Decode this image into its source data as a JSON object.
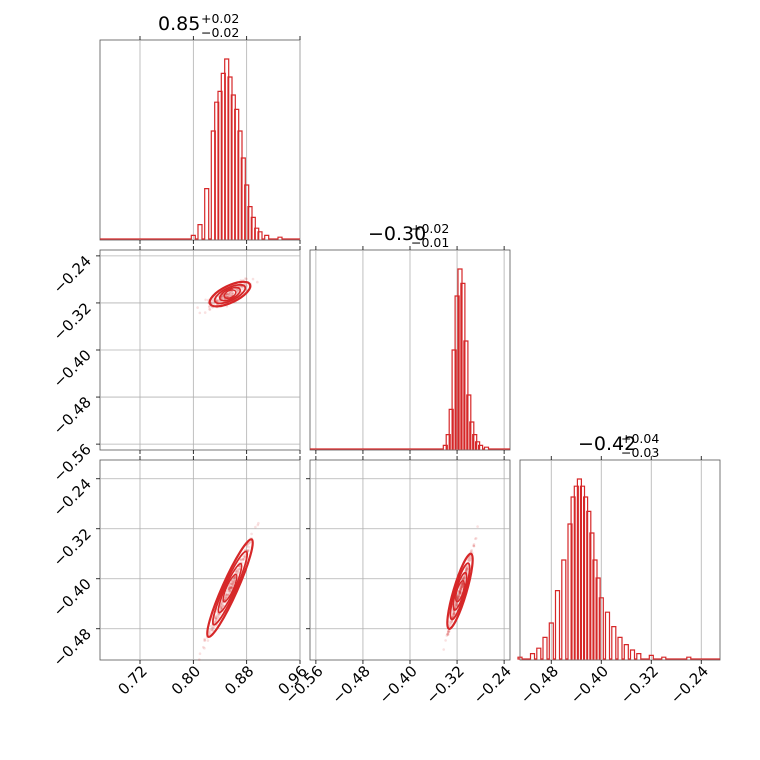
{
  "chart_data": {
    "type": "corner",
    "color": "#d62728",
    "parameters": [
      {
        "range": [
          0.66,
          0.96
        ],
        "ticks": [
          0.72,
          0.8,
          0.88,
          0.96
        ],
        "tick_labels": [
          "0.72",
          "0.80",
          "0.88",
          "0.96"
        ],
        "title": {
          "main": "0.85",
          "plus": "+0.02",
          "minus": "−0.02"
        }
      },
      {
        "range": [
          -0.57,
          -0.23
        ],
        "ticks": [
          -0.56,
          -0.48,
          -0.4,
          -0.32,
          -0.24
        ],
        "tick_labels": [
          "−0.56",
          "−0.48",
          "−0.40",
          "−0.32",
          "−0.24"
        ],
        "title": {
          "main": "−0.30",
          "plus": "+0.02",
          "minus": "−0.01"
        }
      },
      {
        "range": [
          -0.53,
          -0.21
        ],
        "ticks": [
          -0.48,
          -0.4,
          -0.32,
          -0.24
        ],
        "tick_labels": [
          "−0.48",
          "−0.40",
          "−0.32",
          "−0.24"
        ],
        "title": {
          "main": "−0.42",
          "plus": "+0.04",
          "minus": "−0.03"
        }
      }
    ],
    "histograms": [
      {
        "param": 0,
        "bins": [
          [
            0.8,
            2
          ],
          [
            0.81,
            8
          ],
          [
            0.82,
            28
          ],
          [
            0.83,
            60
          ],
          [
            0.835,
            76
          ],
          [
            0.84,
            82
          ],
          [
            0.845,
            92
          ],
          [
            0.85,
            100
          ],
          [
            0.855,
            90
          ],
          [
            0.86,
            80
          ],
          [
            0.865,
            72
          ],
          [
            0.87,
            60
          ],
          [
            0.875,
            45
          ],
          [
            0.88,
            30
          ],
          [
            0.885,
            18
          ],
          [
            0.89,
            12
          ],
          [
            0.895,
            6
          ],
          [
            0.9,
            4
          ],
          [
            0.91,
            2
          ],
          [
            0.93,
            1
          ]
        ]
      },
      {
        "param": 1,
        "bins": [
          [
            -0.34,
            2
          ],
          [
            -0.335,
            8
          ],
          [
            -0.33,
            22
          ],
          [
            -0.325,
            55
          ],
          [
            -0.32,
            85
          ],
          [
            -0.315,
            100
          ],
          [
            -0.31,
            92
          ],
          [
            -0.305,
            60
          ],
          [
            -0.3,
            30
          ],
          [
            -0.295,
            15
          ],
          [
            -0.29,
            8
          ],
          [
            -0.285,
            4
          ],
          [
            -0.28,
            2
          ],
          [
            -0.27,
            1
          ]
        ]
      },
      {
        "param": 2,
        "bins": [
          [
            -0.53,
            1
          ],
          [
            -0.51,
            3
          ],
          [
            -0.5,
            6
          ],
          [
            -0.49,
            12
          ],
          [
            -0.48,
            20
          ],
          [
            -0.47,
            38
          ],
          [
            -0.46,
            55
          ],
          [
            -0.45,
            75
          ],
          [
            -0.445,
            90
          ],
          [
            -0.44,
            96
          ],
          [
            -0.435,
            100
          ],
          [
            -0.43,
            96
          ],
          [
            -0.425,
            90
          ],
          [
            -0.42,
            82
          ],
          [
            -0.415,
            70
          ],
          [
            -0.41,
            55
          ],
          [
            -0.405,
            45
          ],
          [
            -0.4,
            34
          ],
          [
            -0.39,
            26
          ],
          [
            -0.38,
            18
          ],
          [
            -0.37,
            12
          ],
          [
            -0.36,
            8
          ],
          [
            -0.35,
            5
          ],
          [
            -0.34,
            3
          ],
          [
            -0.32,
            2
          ],
          [
            -0.3,
            1
          ],
          [
            -0.26,
            1
          ]
        ]
      }
    ],
    "scatter_2d": [
      {
        "x_param": 0,
        "y_param": 1,
        "center": [
          0.855,
          -0.305
        ],
        "x_extent": [
          0.8,
          0.92
        ],
        "slope": 0.55,
        "width": 0.012
      },
      {
        "x_param": 0,
        "y_param": 2,
        "center": [
          0.855,
          -0.415
        ],
        "x_extent": [
          0.79,
          0.92
        ],
        "slope": 2.4,
        "width": 0.01
      },
      {
        "x_param": 1,
        "y_param": 2,
        "center": [
          -0.315,
          -0.42
        ],
        "x_extent": [
          -0.345,
          -0.27
        ],
        "slope": 3.2,
        "width": 0.008
      }
    ],
    "grid": true,
    "legend": "none"
  }
}
